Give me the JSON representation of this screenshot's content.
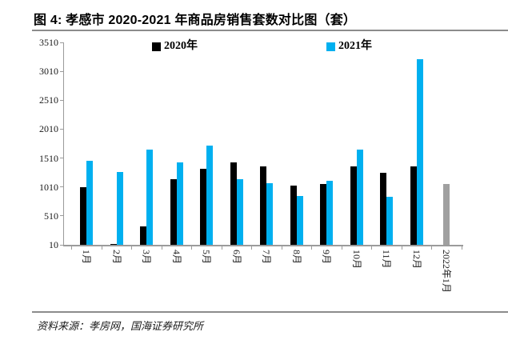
{
  "figure": {
    "title": "图 4: 孝感市 2020-2021 年商品房销售套数对比图（套）",
    "source": "资料来源：孝房网，国海证券研究所"
  },
  "chart_data": {
    "type": "bar",
    "title": "孝感市 2020-2021 年商品房销售套数对比图（套）",
    "unit": "套",
    "categories": [
      "1月",
      "2月",
      "3月",
      "4月",
      "5月",
      "6月",
      "7月",
      "8月",
      "9月",
      "10月",
      "11月",
      "12月",
      "2022年1月"
    ],
    "series": [
      {
        "name": "2020年",
        "color": "#000000",
        "values": [
          1000,
          20,
          330,
          1140,
          1330,
          1440,
          1360,
          1030,
          1060,
          1360,
          1250,
          1370,
          null
        ]
      },
      {
        "name": "2021年",
        "color": "#00B0F0",
        "values": [
          1460,
          1270,
          1650,
          1440,
          1730,
          1140,
          1080,
          850,
          1120,
          1660,
          840,
          3220,
          null
        ]
      },
      {
        "name": "2022年1月",
        "color": "#A0A0A0",
        "values": [
          null,
          null,
          null,
          null,
          null,
          null,
          null,
          null,
          null,
          null,
          null,
          null,
          1060
        ]
      }
    ],
    "legend": [
      {
        "label": "2020年",
        "color": "#000000"
      },
      {
        "label": "2021年",
        "color": "#00B0F0"
      }
    ],
    "legend_position": "top-inside",
    "grid": false,
    "xlabel": "",
    "ylabel": "",
    "y_axis": {
      "min": 10,
      "max": 3510,
      "step": 500,
      "ticks": [
        10,
        510,
        1010,
        1510,
        2010,
        2510,
        3010,
        3510
      ]
    }
  }
}
